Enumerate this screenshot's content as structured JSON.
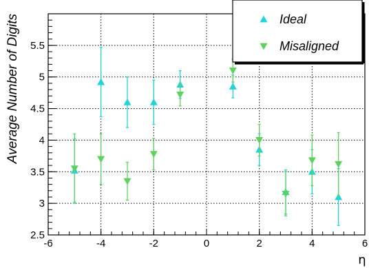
{
  "chart_data": {
    "type": "scatter",
    "title": "",
    "xlabel": "η",
    "ylabel": "Average Number of Digits",
    "xlim": [
      -6,
      6
    ],
    "ylim": [
      2.5,
      6
    ],
    "grid": true,
    "legend_position": "top-right",
    "x_ticks": [
      "-6",
      "-4",
      "-2",
      "0",
      "2",
      "4",
      "6"
    ],
    "y_ticks": [
      "2.5",
      "3",
      "3.5",
      "4",
      "4.5",
      "5",
      "5.5"
    ],
    "series": [
      {
        "name": "Ideal",
        "color": "#22d3d8",
        "marker": "triangle-up",
        "points": [
          {
            "x": -5,
            "y": 3.52,
            "err": 0.5
          },
          {
            "x": -4,
            "y": 4.92,
            "err": 0.55
          },
          {
            "x": -3,
            "y": 4.6,
            "err": 0.4
          },
          {
            "x": -2,
            "y": 4.6,
            "err": 0.35
          },
          {
            "x": -1,
            "y": 4.88,
            "err": 0.22
          },
          {
            "x": 1,
            "y": 4.85,
            "err": 0.18
          },
          {
            "x": 2,
            "y": 3.85,
            "err": 0.25
          },
          {
            "x": 3,
            "y": 3.18,
            "err": 0.35
          },
          {
            "x": 4,
            "y": 3.5,
            "err": 0.35
          },
          {
            "x": 5,
            "y": 3.1,
            "err": 0.45
          }
        ]
      },
      {
        "name": "Misaligned",
        "color": "#5fd160",
        "marker": "triangle-down",
        "points": [
          {
            "x": -5,
            "y": 3.55,
            "err": 0.55
          },
          {
            "x": -4,
            "y": 3.7,
            "err": 0.4
          },
          {
            "x": -3,
            "y": 3.35,
            "err": 0.3
          },
          {
            "x": -2,
            "y": 3.78,
            "err": 0.25
          },
          {
            "x": -1,
            "y": 4.72,
            "err": 0.18
          },
          {
            "x": 1,
            "y": 5.1,
            "err": 0.18
          },
          {
            "x": 2,
            "y": 4.0,
            "err": 0.25
          },
          {
            "x": 3,
            "y": 3.15,
            "err": 0.35
          },
          {
            "x": 4,
            "y": 3.68,
            "err": 0.4
          },
          {
            "x": 5,
            "y": 3.62,
            "err": 0.5
          }
        ]
      }
    ]
  }
}
